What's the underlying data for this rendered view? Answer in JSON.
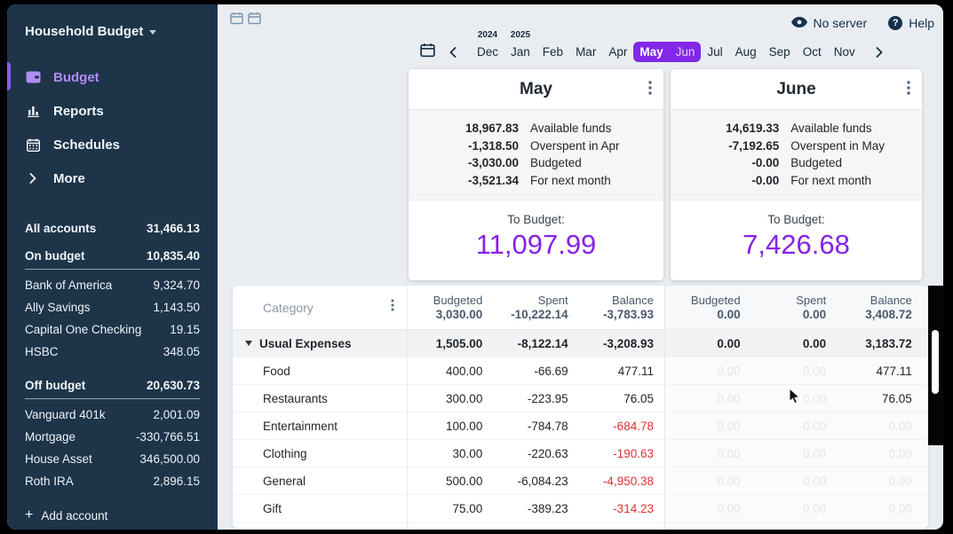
{
  "colors": {
    "accent_purple": "#8327e8",
    "to_budget_purple": "#8622e6",
    "sidebar_navy": "#1d3449",
    "negative_red": "#e03131",
    "active_nav_purple": "#b18cf2"
  },
  "sidebar": {
    "title": "Household Budget",
    "nav": [
      {
        "label": "Budget"
      },
      {
        "label": "Reports"
      },
      {
        "label": "Schedules"
      },
      {
        "label": "More"
      }
    ],
    "all_accounts": {
      "label": "All accounts",
      "value": "31,466.13"
    },
    "groups": [
      {
        "label": "On budget",
        "value": "10,835.40",
        "accounts": [
          {
            "name": "Bank of America",
            "value": "9,324.70"
          },
          {
            "name": "Ally Savings",
            "value": "1,143.50"
          },
          {
            "name": "Capital One Checking",
            "value": "19.15"
          },
          {
            "name": "HSBC",
            "value": "348.05"
          }
        ]
      },
      {
        "label": "Off budget",
        "value": "20,630.73",
        "accounts": [
          {
            "name": "Vanguard 401k",
            "value": "2,001.09"
          },
          {
            "name": "Mortgage",
            "value": "-330,766.51"
          },
          {
            "name": "House Asset",
            "value": "346,500.00"
          },
          {
            "name": "Roth IRA",
            "value": "2,896.15"
          }
        ]
      }
    ],
    "add_account": "Add account"
  },
  "topbar": {
    "no_server": "No server",
    "help": "Help"
  },
  "month_nav": {
    "months": [
      {
        "label": "Dec",
        "year": "2024"
      },
      {
        "label": "Jan",
        "year": "2025"
      },
      {
        "label": "Feb"
      },
      {
        "label": "Mar"
      },
      {
        "label": "Apr"
      },
      {
        "label": "May",
        "selected": true,
        "primary": true
      },
      {
        "label": "Jun",
        "selected": true
      },
      {
        "label": "Jul"
      },
      {
        "label": "Aug"
      },
      {
        "label": "Sep"
      },
      {
        "label": "Oct"
      },
      {
        "label": "Nov"
      }
    ]
  },
  "cards": [
    {
      "month": "May",
      "summary": [
        {
          "value": "18,967.83",
          "label": "Available funds"
        },
        {
          "value": "-1,318.50",
          "label": "Overspent in Apr"
        },
        {
          "value": "-3,030.00",
          "label": "Budgeted"
        },
        {
          "value": "-3,521.34",
          "label": "For next month"
        }
      ],
      "to_budget_label": "To Budget:",
      "to_budget_value": "11,097.99"
    },
    {
      "month": "June",
      "summary": [
        {
          "value": "14,619.33",
          "label": "Available funds"
        },
        {
          "value": "-7,192.65",
          "label": "Overspent in May"
        },
        {
          "value": "-0.00",
          "label": "Budgeted"
        },
        {
          "value": "-0.00",
          "label": "For next month"
        }
      ],
      "to_budget_label": "To Budget:",
      "to_budget_value": "7,426.68"
    }
  ],
  "table": {
    "category_header": "Category",
    "column_headers": [
      "Budgeted",
      "Spent",
      "Balance"
    ],
    "may_totals": [
      "3,030.00",
      "-10,222.14",
      "-3,783.93"
    ],
    "june_totals": [
      "0.00",
      "0.00",
      "3,408.72"
    ],
    "rows": [
      {
        "name": "Usual Expenses",
        "group": true,
        "may": [
          "1,505.00",
          "-8,122.14",
          "-3,208.93"
        ],
        "june": [
          "0.00",
          "0.00",
          "3,183.72"
        ],
        "june_faded": [
          false,
          false,
          false
        ],
        "balance_red": false
      },
      {
        "name": "Food",
        "group": false,
        "may": [
          "400.00",
          "-66.69",
          "477.11"
        ],
        "june": [
          "0.00",
          "0.00",
          "477.11"
        ],
        "june_faded": [
          true,
          true,
          false
        ],
        "balance_red": false
      },
      {
        "name": "Restaurants",
        "group": false,
        "may": [
          "300.00",
          "-223.95",
          "76.05"
        ],
        "june": [
          "0.00",
          "0.00",
          "76.05"
        ],
        "june_faded": [
          true,
          true,
          false
        ],
        "balance_red": false
      },
      {
        "name": "Entertainment",
        "group": false,
        "may": [
          "100.00",
          "-784.78",
          "-684.78"
        ],
        "june": [
          "0.00",
          "0.00",
          "0.00"
        ],
        "june_faded": [
          true,
          true,
          true
        ],
        "balance_red": true
      },
      {
        "name": "Clothing",
        "group": false,
        "may": [
          "30.00",
          "-220.63",
          "-190.63"
        ],
        "june": [
          "0.00",
          "0.00",
          "0.00"
        ],
        "june_faded": [
          true,
          true,
          true
        ],
        "balance_red": true
      },
      {
        "name": "General",
        "group": false,
        "may": [
          "500.00",
          "-6,084.23",
          "-4,950.38"
        ],
        "june": [
          "0.00",
          "0.00",
          "0.00"
        ],
        "june_faded": [
          true,
          true,
          true
        ],
        "balance_red": true
      },
      {
        "name": "Gift",
        "group": false,
        "may": [
          "75.00",
          "-389.23",
          "-314.23"
        ],
        "june": [
          "0.00",
          "0.00",
          "0.00"
        ],
        "june_faded": [
          true,
          true,
          true
        ],
        "balance_red": true
      }
    ]
  }
}
